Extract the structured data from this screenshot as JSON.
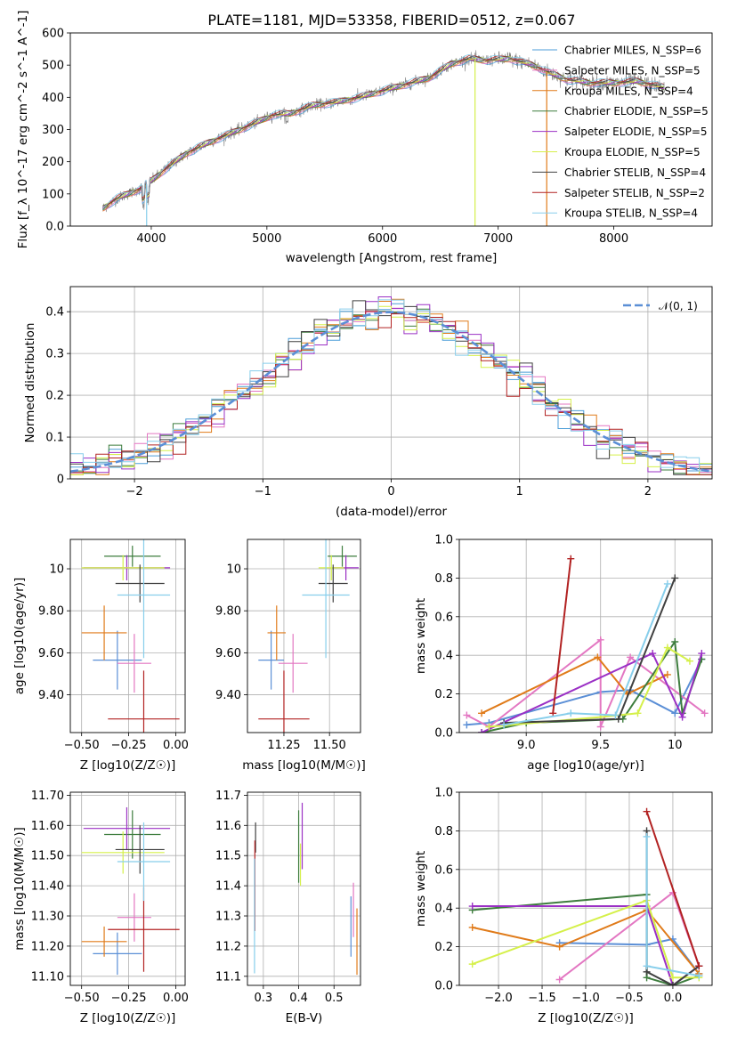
{
  "figure": {
    "title": "PLATE=1181, MJD=53358, FIBERID=0512, z=0.067"
  },
  "chart_data": [
    {
      "id": "spectrum",
      "type": "line",
      "xlabel": "wavelength [Angstrom, rest frame]",
      "ylabel": "Flux [f_λ 10^-17 erg cm^-2 s^-1 A^-1]",
      "xlim": [
        3300,
        8850
      ],
      "ylim": [
        0,
        600
      ],
      "xticks": [
        4000,
        5000,
        6000,
        7000,
        8000
      ],
      "yticks": [
        0,
        100,
        200,
        300,
        400,
        500,
        600
      ],
      "grid": false,
      "legend_position": "right",
      "data_color": "#808080",
      "continuum": [
        [
          3580,
          55
        ],
        [
          3700,
          85
        ],
        [
          3900,
          115
        ],
        [
          4000,
          140
        ],
        [
          4150,
          185
        ],
        [
          4300,
          225
        ],
        [
          4500,
          260
        ],
        [
          4700,
          290
        ],
        [
          4900,
          320
        ],
        [
          5050,
          345
        ],
        [
          5200,
          350
        ],
        [
          5400,
          375
        ],
        [
          5600,
          385
        ],
        [
          5800,
          400
        ],
        [
          6000,
          420
        ],
        [
          6200,
          440
        ],
        [
          6400,
          460
        ],
        [
          6600,
          505
        ],
        [
          6750,
          520
        ],
        [
          6900,
          515
        ],
        [
          7100,
          520
        ],
        [
          7300,
          500
        ],
        [
          7450,
          475
        ],
        [
          7600,
          455
        ],
        [
          7800,
          445
        ],
        [
          8000,
          445
        ],
        [
          8200,
          450
        ],
        [
          8440,
          430
        ]
      ],
      "series": [
        {
          "name": "Chabrier MILES, N_SSP=6",
          "color": "#4c9ed8"
        },
        {
          "name": "Salpeter MILES, N_SSP=5",
          "color": "#e377c2"
        },
        {
          "name": "Kroupa MILES, N_SSP=4",
          "color": "#e07b1a"
        },
        {
          "name": "Chabrier ELODIE, N_SSP=5",
          "color": "#3e7d3e"
        },
        {
          "name": "Salpeter ELODIE, N_SSP=5",
          "color": "#9b30c5"
        },
        {
          "name": "Kroupa ELODIE, N_SSP=5",
          "color": "#d5f04a"
        },
        {
          "name": "Chabrier STELIB, N_SSP=4",
          "color": "#404040"
        },
        {
          "name": "Salpeter STELIB, N_SSP=2",
          "color": "#b22222"
        },
        {
          "name": "Kroupa STELIB, N_SSP=4",
          "color": "#87ceeb"
        }
      ]
    },
    {
      "id": "residuals",
      "type": "histogram",
      "xlabel": "(data-model)/error",
      "ylabel": "Normed distribution",
      "xlim": [
        -2.5,
        2.5
      ],
      "ylim": [
        0,
        0.46
      ],
      "xticks": [
        -2,
        -1,
        0,
        1,
        2
      ],
      "yticks": [
        0.0,
        0.1,
        0.2,
        0.3,
        0.4
      ],
      "grid": true,
      "legend_position": "top-right",
      "gaussian_label": "𝒩(0, 1)",
      "gaussian_color": "#5b8fd6",
      "bin_width": 0.1
    },
    {
      "id": "age-vs-Z",
      "type": "errorbar",
      "xlabel": "Z [log10(Z/Z☉)]",
      "ylabel": "age [log10(age/yr)]",
      "xlim": [
        -0.56,
        0.05
      ],
      "ylim": [
        9.22,
        10.14
      ],
      "xticks": [
        -0.5,
        -0.25,
        0.0
      ],
      "yticks": [
        9.4,
        9.6,
        9.8,
        10.0
      ],
      "grid": true,
      "points": [
        {
          "x": -0.31,
          "xerr": 0.13,
          "y": 9.565,
          "yerr": 0.14,
          "color": "#5b8fd6"
        },
        {
          "x": -0.22,
          "xerr": 0.09,
          "y": 9.55,
          "yerr": 0.14,
          "color": "#e377c2"
        },
        {
          "x": -0.38,
          "xerr": 0.12,
          "y": 9.695,
          "yerr": 0.13,
          "color": "#e07b1a"
        },
        {
          "x": -0.23,
          "xerr": 0.15,
          "y": 10.06,
          "yerr": 0.05,
          "color": "#3e7d3e"
        },
        {
          "x": -0.26,
          "xerr": 0.23,
          "y": 10.005,
          "yerr": 0.06,
          "color": "#9b30c5"
        },
        {
          "x": -0.28,
          "xerr": 0.22,
          "y": 10.005,
          "yerr": 0.06,
          "color": "#d5f04a"
        },
        {
          "x": -0.19,
          "xerr": 0.13,
          "y": 9.93,
          "yerr": 0.09,
          "color": "#404040"
        },
        {
          "x": -0.17,
          "xerr": 0.19,
          "y": 9.285,
          "yerr": 0.23,
          "color": "#b22222"
        },
        {
          "x": -0.17,
          "xerr": 0.14,
          "y": 9.875,
          "yerr": 0.3,
          "color": "#87ceeb"
        }
      ]
    },
    {
      "id": "age-vs-mass",
      "type": "errorbar",
      "xlabel": "mass [log10(M/M☉)]",
      "ylabel": "",
      "xlim": [
        11.05,
        11.67
      ],
      "ylim": [
        9.22,
        10.14
      ],
      "xticks": [
        11.25,
        11.5
      ],
      "yticks": [
        9.4,
        9.6,
        9.8,
        10.0
      ],
      "grid": true,
      "points": [
        {
          "x": 11.18,
          "xerr": 0.07,
          "y": 9.565,
          "yerr": 0.14,
          "color": "#5b8fd6"
        },
        {
          "x": 11.3,
          "xerr": 0.08,
          "y": 9.55,
          "yerr": 0.14,
          "color": "#e377c2"
        },
        {
          "x": 11.21,
          "xerr": 0.05,
          "y": 9.695,
          "yerr": 0.13,
          "color": "#e07b1a"
        },
        {
          "x": 11.57,
          "xerr": 0.08,
          "y": 10.06,
          "yerr": 0.05,
          "color": "#3e7d3e"
        },
        {
          "x": 11.59,
          "xerr": 0.07,
          "y": 10.005,
          "yerr": 0.06,
          "color": "#9b30c5"
        },
        {
          "x": 11.51,
          "xerr": 0.07,
          "y": 10.005,
          "yerr": 0.06,
          "color": "#d5f04a"
        },
        {
          "x": 11.52,
          "xerr": 0.08,
          "y": 9.93,
          "yerr": 0.09,
          "color": "#404040"
        },
        {
          "x": 11.25,
          "xerr": 0.14,
          "y": 9.285,
          "yerr": 0.23,
          "color": "#b22222"
        },
        {
          "x": 11.48,
          "xerr": 0.13,
          "y": 9.875,
          "yerr": 0.3,
          "color": "#87ceeb"
        }
      ]
    },
    {
      "id": "weight-vs-age",
      "type": "line",
      "xlabel": "age [log10(age/yr)]",
      "ylabel": "mass weight",
      "xlim": [
        8.55,
        10.25
      ],
      "ylim": [
        0,
        1.0
      ],
      "xticks": [
        9.0,
        9.5,
        10.0
      ],
      "yticks": [
        0.0,
        0.2,
        0.4,
        0.6,
        0.8,
        1.0
      ],
      "grid": true,
      "series": [
        {
          "color": "#5b8fd6",
          "points": [
            [
              8.6,
              0.04
            ],
            [
              8.75,
              0.05
            ],
            [
              9.5,
              0.21
            ],
            [
              9.7,
              0.22
            ],
            [
              10.0,
              0.1
            ],
            [
              10.18,
              0.38
            ]
          ]
        },
        {
          "color": "#e377c2",
          "points": [
            [
              8.6,
              0.09
            ],
            [
              8.75,
              0.03
            ],
            [
              9.5,
              0.48
            ],
            [
              9.5,
              0.03
            ],
            [
              9.7,
              0.39
            ],
            [
              10.2,
              0.1
            ]
          ]
        },
        {
          "color": "#e07b1a",
          "points": [
            [
              8.7,
              0.1
            ],
            [
              9.48,
              0.39
            ],
            [
              9.68,
              0.2
            ],
            [
              9.95,
              0.3
            ]
          ]
        },
        {
          "color": "#3e7d3e",
          "points": [
            [
              8.7,
              0.0
            ],
            [
              9.0,
              0.05
            ],
            [
              9.65,
              0.07
            ],
            [
              10.0,
              0.47
            ],
            [
              10.05,
              0.1
            ],
            [
              10.18,
              0.38
            ]
          ]
        },
        {
          "color": "#9b30c5",
          "points": [
            [
              8.7,
              0.0
            ],
            [
              9.85,
              0.41
            ],
            [
              10.05,
              0.08
            ],
            [
              10.18,
              0.41
            ]
          ]
        },
        {
          "color": "#d5f04a",
          "points": [
            [
              8.75,
              0.03
            ],
            [
              9.5,
              0.08
            ],
            [
              9.75,
              0.1
            ],
            [
              9.95,
              0.44
            ],
            [
              10.1,
              0.37
            ]
          ]
        },
        {
          "color": "#404040",
          "points": [
            [
              8.85,
              0.05
            ],
            [
              9.62,
              0.07
            ],
            [
              10.0,
              0.8
            ]
          ]
        },
        {
          "color": "#b22222",
          "points": [
            [
              9.18,
              0.1
            ],
            [
              9.3,
              0.9
            ]
          ]
        },
        {
          "color": "#87ceeb",
          "points": [
            [
              8.85,
              0.04
            ],
            [
              9.3,
              0.1
            ],
            [
              9.6,
              0.09
            ],
            [
              9.95,
              0.77
            ]
          ]
        }
      ]
    },
    {
      "id": "mass-vs-Z",
      "type": "errorbar",
      "xlabel": "Z [log10(Z/Z☉)]",
      "ylabel": "mass [log10(M/M☉)]",
      "xlim": [
        -0.56,
        0.05
      ],
      "ylim": [
        11.07,
        11.71
      ],
      "xticks": [
        -0.5,
        -0.25,
        0.0
      ],
      "yticks": [
        11.1,
        11.2,
        11.3,
        11.4,
        11.5,
        11.6,
        11.7
      ],
      "grid": true,
      "points": [
        {
          "x": -0.31,
          "xerr": 0.13,
          "y": 11.175,
          "yerr": 0.07,
          "color": "#5b8fd6"
        },
        {
          "x": -0.22,
          "xerr": 0.09,
          "y": 11.295,
          "yerr": 0.08,
          "color": "#e377c2"
        },
        {
          "x": -0.38,
          "xerr": 0.12,
          "y": 11.215,
          "yerr": 0.05,
          "color": "#e07b1a"
        },
        {
          "x": -0.23,
          "xerr": 0.15,
          "y": 11.57,
          "yerr": 0.08,
          "color": "#3e7d3e"
        },
        {
          "x": -0.26,
          "xerr": 0.23,
          "y": 11.59,
          "yerr": 0.07,
          "color": "#9b30c5"
        },
        {
          "x": -0.28,
          "xerr": 0.22,
          "y": 11.51,
          "yerr": 0.07,
          "color": "#d5f04a"
        },
        {
          "x": -0.19,
          "xerr": 0.13,
          "y": 11.52,
          "yerr": 0.08,
          "color": "#404040"
        },
        {
          "x": -0.17,
          "xerr": 0.19,
          "y": 11.255,
          "yerr": 0.14,
          "color": "#b22222"
        },
        {
          "x": -0.17,
          "xerr": 0.14,
          "y": 11.48,
          "yerr": 0.13,
          "color": "#87ceeb"
        }
      ]
    },
    {
      "id": "mass-vs-ebv",
      "type": "errorbar",
      "xlabel": "E(B-V)",
      "ylabel": "",
      "xlim": [
        0.255,
        0.575
      ],
      "ylim": [
        11.07,
        11.71
      ],
      "xticks": [
        0.3,
        0.4,
        0.5
      ],
      "yticks": [
        11.1,
        11.2,
        11.3,
        11.4,
        11.5,
        11.6,
        11.7
      ],
      "grid": true,
      "points": [
        {
          "x": 0.548,
          "y": 11.265,
          "yerr": 0.1,
          "color": "#5b8fd6"
        },
        {
          "x": 0.555,
          "y": 11.32,
          "yerr": 0.09,
          "color": "#e377c2"
        },
        {
          "x": 0.565,
          "y": 11.215,
          "yerr": 0.11,
          "color": "#e07b1a"
        },
        {
          "x": 0.4,
          "y": 11.53,
          "yerr": 0.12,
          "color": "#3e7d3e"
        },
        {
          "x": 0.41,
          "y": 11.565,
          "yerr": 0.11,
          "color": "#9b30c5"
        },
        {
          "x": 0.405,
          "y": 11.47,
          "yerr": 0.07,
          "color": "#d5f04a"
        },
        {
          "x": 0.278,
          "y": 11.56,
          "yerr": 0.05,
          "color": "#404040"
        },
        {
          "x": 0.276,
          "y": 11.4,
          "yerr": 0.15,
          "color": "#b22222"
        },
        {
          "x": 0.275,
          "y": 11.3,
          "yerr": 0.19,
          "color": "#87ceeb"
        }
      ]
    },
    {
      "id": "weight-vs-Z",
      "type": "line",
      "xlabel": "Z [log10(Z/Z☉)]",
      "ylabel": "mass weight",
      "xlim": [
        -2.45,
        0.45
      ],
      "ylim": [
        0,
        1.0
      ],
      "xticks": [
        -2.0,
        -1.5,
        -1.0,
        -0.5,
        0.0
      ],
      "yticks": [
        0.0,
        0.2,
        0.4,
        0.6,
        0.8,
        1.0
      ],
      "grid": true,
      "series": [
        {
          "color": "#5b8fd6",
          "points": [
            [
              -1.3,
              0.22
            ],
            [
              -0.3,
              0.21
            ],
            [
              0.0,
              0.24
            ],
            [
              0.3,
              0.06
            ]
          ]
        },
        {
          "color": "#e377c2",
          "points": [
            [
              -1.3,
              0.03
            ],
            [
              0.0,
              0.48
            ],
            [
              0.3,
              0.1
            ]
          ]
        },
        {
          "color": "#e07b1a",
          "points": [
            [
              -2.3,
              0.3
            ],
            [
              -1.3,
              0.2
            ],
            [
              -0.3,
              0.39
            ],
            [
              0.3,
              0.06
            ]
          ]
        },
        {
          "color": "#3e7d3e",
          "points": [
            [
              -2.3,
              0.39
            ],
            [
              -0.3,
              0.47
            ],
            [
              -0.3,
              0.04
            ],
            [
              0.0,
              0.0
            ],
            [
              0.3,
              0.05
            ]
          ]
        },
        {
          "color": "#9b30c5",
          "points": [
            [
              -2.3,
              0.41
            ],
            [
              -0.3,
              0.41
            ],
            [
              0.0,
              0.0
            ],
            [
              0.3,
              0.1
            ]
          ]
        },
        {
          "color": "#d5f04a",
          "points": [
            [
              -2.3,
              0.11
            ],
            [
              -0.3,
              0.44
            ],
            [
              0.0,
              0.04
            ],
            [
              0.3,
              0.04
            ]
          ]
        },
        {
          "color": "#404040",
          "points": [
            [
              -0.3,
              0.8
            ],
            [
              -0.3,
              0.07
            ],
            [
              0.0,
              0.0
            ],
            [
              0.3,
              0.1
            ]
          ]
        },
        {
          "color": "#b22222",
          "points": [
            [
              -0.3,
              0.9
            ],
            [
              0.3,
              0.1
            ]
          ]
        },
        {
          "color": "#87ceeb",
          "points": [
            [
              -0.3,
              0.77
            ],
            [
              -0.3,
              0.1
            ],
            [
              0.3,
              0.05
            ]
          ]
        }
      ]
    }
  ]
}
